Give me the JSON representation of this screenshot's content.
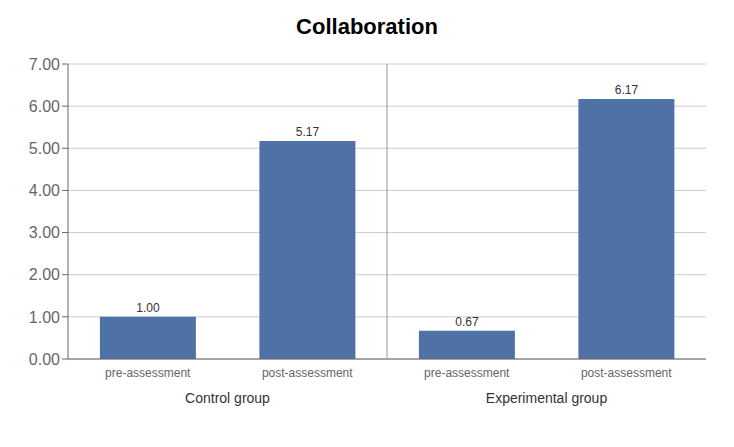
{
  "chart_data": {
    "type": "bar",
    "title": "Collaboration",
    "categories": [
      "pre-assessment",
      "post-assessment",
      "pre-assessment",
      "post-assessment"
    ],
    "values": [
      1.0,
      5.17,
      0.67,
      6.17
    ],
    "value_labels": [
      "1.00",
      "5.17",
      "0.67",
      "6.17"
    ],
    "data_labels": true,
    "color": "#4F72A6",
    "annotations": [
      "Control group",
      "Experimental group"
    ],
    "ylim": [
      0.0,
      7.0
    ],
    "yticks": [
      {
        "value": 0.0,
        "label": "0.00"
      },
      {
        "value": 1.0,
        "label": "1.00"
      },
      {
        "value": 2.0,
        "label": "2.00"
      },
      {
        "value": 3.0,
        "label": "3.00"
      },
      {
        "value": 4.0,
        "label": "4.00"
      },
      {
        "value": 5.0,
        "label": "5.00"
      },
      {
        "value": 6.0,
        "label": "6.00"
      },
      {
        "value": 7.0,
        "label": "7.00"
      }
    ],
    "grid": true
  }
}
